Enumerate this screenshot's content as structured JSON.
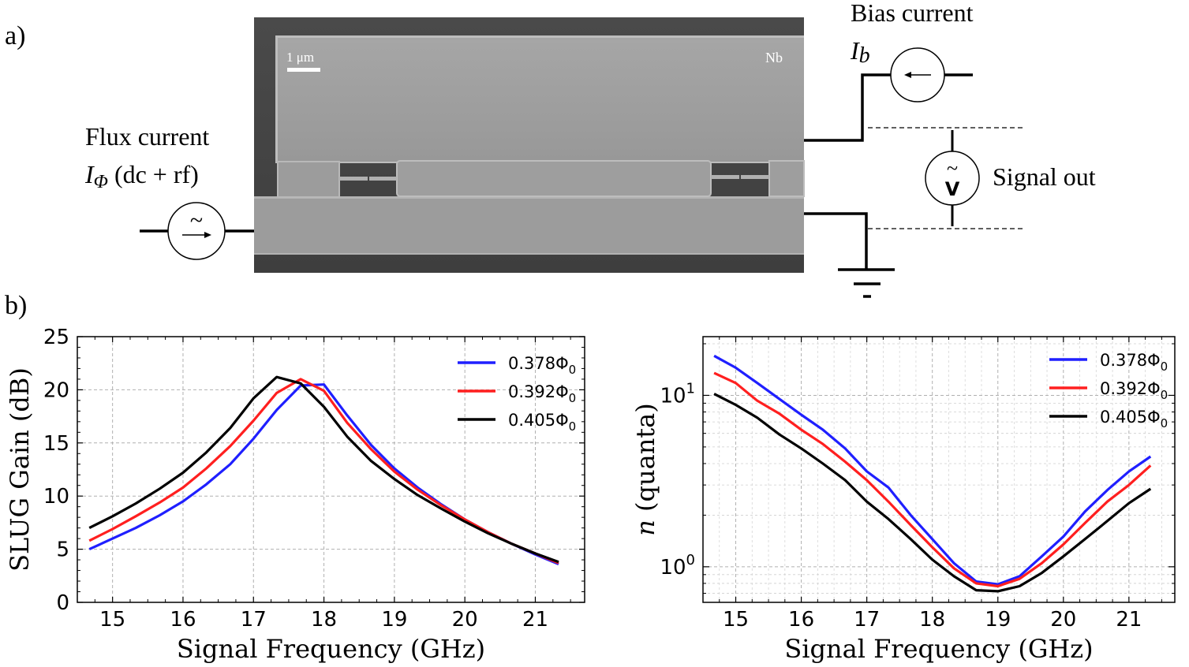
{
  "panel_a": {
    "label": "a)",
    "scale_bar_label": "1 μm",
    "material_label": "Nb",
    "flux_line1": "Flux current",
    "flux_symbol": "I",
    "flux_subscript": "Φ",
    "flux_suffix": " (dc + rf)",
    "bias_line1": "Bias current",
    "bias_symbol": "I",
    "bias_subscript": "b",
    "signal_out": "Signal out",
    "tilde_glyph": "~",
    "voltmeter_glyph": "V"
  },
  "panel_b": {
    "label": "b)"
  },
  "colors": {
    "blue": "#1f1fff",
    "red": "#ff1f1f",
    "black": "#000000",
    "grid": "#b0b0b0"
  },
  "chart_data": [
    {
      "type": "line",
      "title": "",
      "xlabel": "Signal Frequency (GHz)",
      "ylabel": "SLUG Gain (dB)",
      "xlim": [
        14.5,
        21.7
      ],
      "ylim": [
        0,
        25
      ],
      "xticks": [
        15,
        16,
        17,
        18,
        19,
        20,
        21
      ],
      "yticks": [
        0,
        5,
        10,
        15,
        20,
        25
      ],
      "grid": true,
      "legend": "top-right",
      "series": [
        {
          "name": "0.378Φ0",
          "label_base": "0.378Φ",
          "label_sub": "0",
          "color": "#1f1fff",
          "x": [
            14.67,
            15.0,
            15.33,
            15.67,
            16.0,
            16.33,
            16.67,
            17.0,
            17.33,
            17.67,
            18.0,
            18.33,
            18.67,
            19.0,
            19.33,
            19.67,
            20.0,
            20.33,
            20.67,
            21.0,
            21.33
          ],
          "y": [
            5.0,
            6.0,
            7.0,
            8.2,
            9.5,
            11.1,
            13.0,
            15.4,
            18.1,
            20.4,
            20.5,
            17.6,
            14.8,
            12.6,
            10.8,
            9.2,
            7.8,
            6.6,
            5.5,
            4.5,
            3.6
          ]
        },
        {
          "name": "0.392Φ0",
          "label_base": "0.392Φ",
          "label_sub": "0",
          "color": "#ff1f1f",
          "x": [
            14.67,
            15.0,
            15.33,
            15.67,
            16.0,
            16.33,
            16.67,
            17.0,
            17.33,
            17.67,
            18.0,
            18.33,
            18.67,
            19.0,
            19.33,
            19.67,
            20.0,
            20.33,
            20.67,
            21.0,
            21.33
          ],
          "y": [
            5.8,
            6.9,
            8.1,
            9.4,
            10.8,
            12.6,
            14.7,
            17.1,
            19.7,
            21.0,
            19.9,
            16.9,
            14.4,
            12.3,
            10.6,
            9.1,
            7.8,
            6.6,
            5.5,
            4.6,
            3.7
          ]
        },
        {
          "name": "0.405Φ0",
          "label_base": "0.405Φ",
          "label_sub": "0",
          "color": "#000000",
          "x": [
            14.67,
            15.0,
            15.33,
            15.67,
            16.0,
            16.33,
            16.67,
            17.0,
            17.33,
            17.67,
            18.0,
            18.33,
            18.67,
            19.0,
            19.33,
            19.67,
            20.0,
            20.33,
            20.67,
            21.0,
            21.33
          ],
          "y": [
            7.0,
            8.1,
            9.3,
            10.7,
            12.2,
            14.1,
            16.4,
            19.2,
            21.2,
            20.6,
            18.4,
            15.6,
            13.3,
            11.6,
            10.1,
            8.8,
            7.6,
            6.5,
            5.5,
            4.6,
            3.8
          ]
        }
      ]
    },
    {
      "type": "line",
      "title": "",
      "xlabel": "Signal Frequency (GHz)",
      "ylabel_italic": "n",
      "ylabel_rest": " (quanta)",
      "yscale": "log",
      "xlim": [
        14.5,
        21.7
      ],
      "ylim": [
        0.62,
        22
      ],
      "xticks": [
        15,
        16,
        17,
        18,
        19,
        20,
        21
      ],
      "ytick_labels": [
        {
          "value": 1,
          "base": "10",
          "exp": "0"
        },
        {
          "value": 10,
          "base": "10",
          "exp": "1"
        }
      ],
      "grid": true,
      "legend": "top-right",
      "series": [
        {
          "name": "0.378Φ0",
          "label_base": "0.378Φ",
          "label_sub": "0",
          "color": "#1f1fff",
          "x": [
            14.67,
            15.0,
            15.33,
            15.67,
            16.0,
            16.33,
            16.67,
            17.0,
            17.33,
            17.67,
            18.0,
            18.33,
            18.67,
            19.0,
            19.33,
            19.67,
            20.0,
            20.33,
            20.67,
            21.0,
            21.33
          ],
          "y": [
            17.0,
            14.5,
            11.8,
            9.5,
            7.7,
            6.3,
            4.9,
            3.6,
            2.9,
            2.0,
            1.45,
            1.05,
            0.82,
            0.79,
            0.88,
            1.15,
            1.5,
            2.1,
            2.8,
            3.6,
            4.4
          ]
        },
        {
          "name": "0.392Φ0",
          "label_base": "0.392Φ",
          "label_sub": "0",
          "color": "#ff1f1f",
          "x": [
            14.67,
            15.0,
            15.33,
            15.67,
            16.0,
            16.33,
            16.67,
            17.0,
            17.33,
            17.67,
            18.0,
            18.33,
            18.67,
            19.0,
            19.33,
            19.67,
            20.0,
            20.33,
            20.67,
            21.0,
            21.33
          ],
          "y": [
            13.5,
            11.8,
            9.3,
            7.8,
            6.3,
            5.2,
            4.1,
            3.2,
            2.4,
            1.75,
            1.3,
            0.98,
            0.8,
            0.77,
            0.85,
            1.05,
            1.35,
            1.8,
            2.4,
            3.0,
            3.9
          ]
        },
        {
          "name": "0.405Φ0",
          "label_base": "0.405Φ",
          "label_sub": "0",
          "color": "#000000",
          "x": [
            14.67,
            15.0,
            15.33,
            15.67,
            16.0,
            16.33,
            16.67,
            17.0,
            17.33,
            17.67,
            18.0,
            18.33,
            18.67,
            19.0,
            19.33,
            19.67,
            20.0,
            20.33,
            20.67,
            21.0,
            21.33
          ],
          "y": [
            10.2,
            8.8,
            7.4,
            5.9,
            4.9,
            4.0,
            3.2,
            2.4,
            1.9,
            1.45,
            1.1,
            0.88,
            0.73,
            0.72,
            0.77,
            0.92,
            1.15,
            1.45,
            1.85,
            2.35,
            2.85
          ]
        }
      ]
    }
  ]
}
